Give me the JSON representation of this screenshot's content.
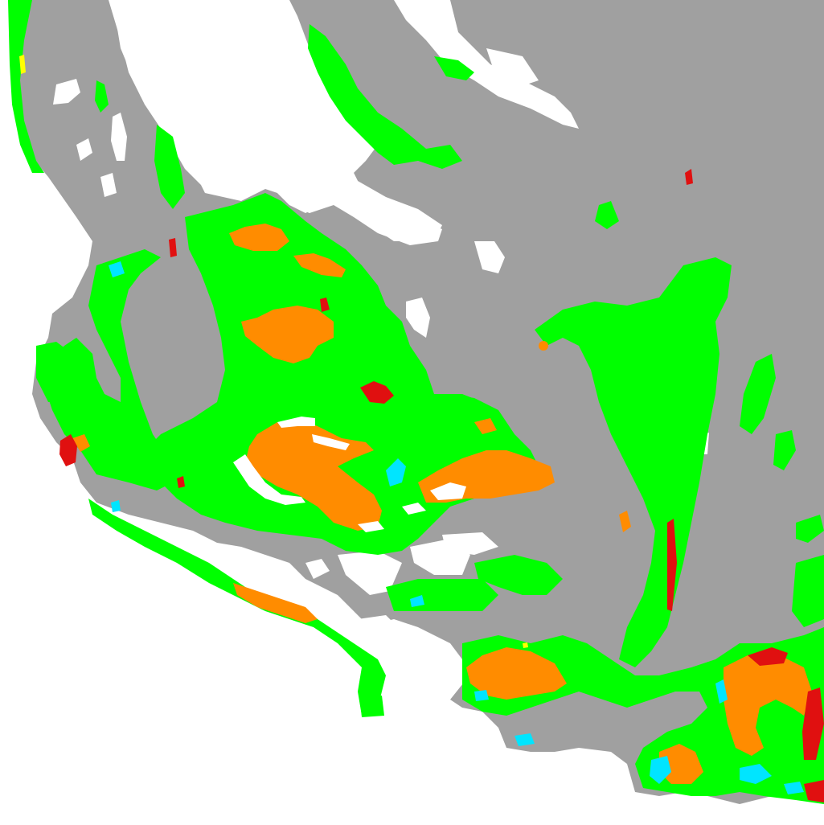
{
  "map": {
    "classes": [
      {
        "key": "background",
        "color": "#ffffff"
      },
      {
        "key": "gray-class",
        "color": "#a0a0a0"
      },
      {
        "key": "green-class",
        "color": "#00ff00"
      },
      {
        "key": "orange-class",
        "color": "#ff8c00"
      },
      {
        "key": "red-class",
        "color": "#e01010"
      },
      {
        "key": "cyan-class",
        "color": "#00e5ff"
      },
      {
        "key": "yellow-class",
        "color": "#ffff00"
      }
    ]
  }
}
